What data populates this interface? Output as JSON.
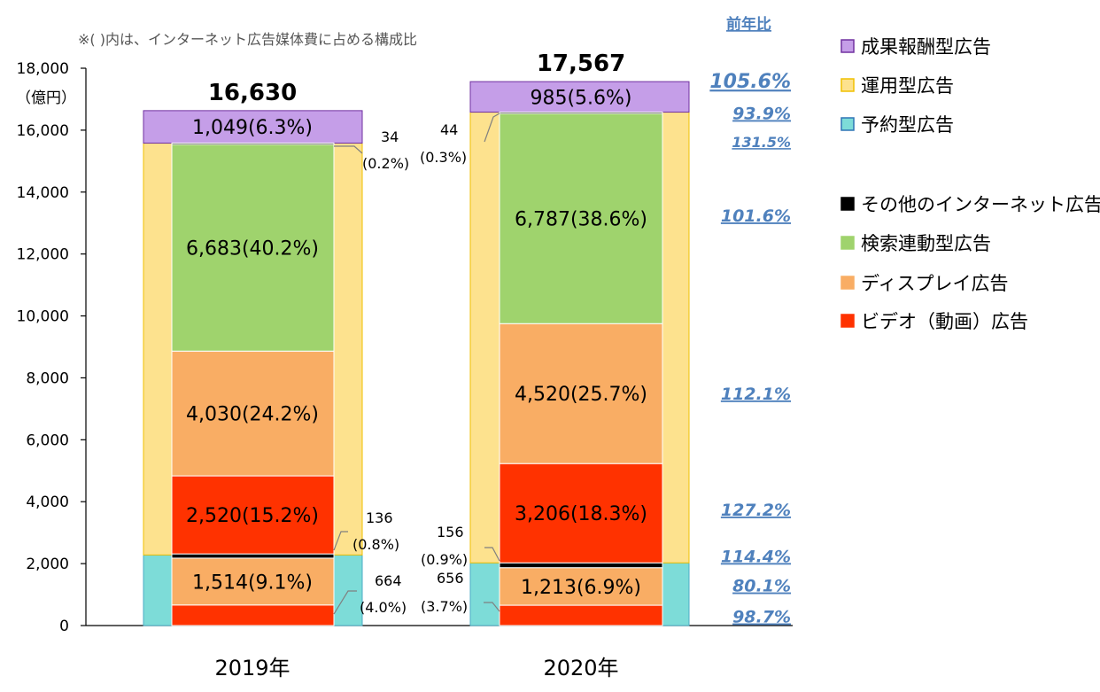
{
  "chart_data": {
    "type": "bar",
    "stacked": true,
    "note": "※( )内は、インターネット広告媒体費に占める構成比",
    "yaxis_unit": "（億円）",
    "ylim": [
      0,
      18000
    ],
    "yticks": [
      "0",
      "2,000",
      "4,000",
      "6,000",
      "8,000",
      "10,000",
      "12,000",
      "14,000",
      "16,000",
      "18,000"
    ],
    "categories": [
      "2019年",
      "2020年"
    ],
    "totals": [
      "16,630",
      "17,567"
    ],
    "colors": {
      "seika": "#c59ee8",
      "unyo": "#fde28e",
      "yoyaku": "#7ddcd8",
      "other": "#000000",
      "search": "#9fd36d",
      "display": "#f9ad64",
      "video": "#ff3200"
    },
    "bars": [
      {
        "yoyaku": 2280,
        "unyo": 13301,
        "seika": 1049,
        "inner": {
          "video": 664,
          "display": 1514,
          "other": 136,
          "video_unyo": 2520,
          "display_unyo": 4030,
          "search": 6683,
          "other_top": 34
        }
      },
      {
        "yoyaku": 2025,
        "unyo": 14557,
        "seika": 985,
        "inner": {
          "video": 656,
          "display": 1213,
          "other": 156,
          "video_unyo": 3206,
          "display_unyo": 4520,
          "search": 6787,
          "other_top": 44
        }
      }
    ],
    "segment_labels": [
      [
        "1,049(6.3%)",
        "6,683(40.2%)",
        "4,030(24.2%)",
        "2,520(15.2%)",
        "1,514(9.1%)"
      ],
      [
        "985(5.6%)",
        "6,787(38.6%)",
        "4,520(25.7%)",
        "3,206(18.3%)",
        "1,213(6.9%)"
      ]
    ],
    "callouts": [
      [
        [
          "34",
          "(0.2%)"
        ],
        [
          "136",
          "(0.8%)"
        ],
        [
          "664",
          "(4.0%)"
        ]
      ],
      [
        [
          "44",
          "(0.3%)"
        ],
        [
          "156",
          "(0.9%)"
        ],
        [
          "656",
          "(3.7%)"
        ]
      ]
    ],
    "yoy_header": "前年比",
    "yoy": [
      {
        "label": "105.6%",
        "value": 17567
      },
      {
        "label": "93.9%",
        "value": 16555
      },
      {
        "label": "131.5%",
        "value": 15650
      },
      {
        "label": "101.6%",
        "value": 13250
      },
      {
        "label": "112.1%",
        "value": 7500
      },
      {
        "label": "127.2%",
        "value": 3750
      },
      {
        "label": "114.4%",
        "value": 2250
      },
      {
        "label": "80.1%",
        "value": 1300
      },
      {
        "label": "98.7%",
        "value": 300
      }
    ],
    "legend": [
      {
        "name": "成果報酬型広告",
        "color": "#c59ee8",
        "border": "#7030a0"
      },
      {
        "name": "運用型広告",
        "color": "#fde28e",
        "border": "#f0c000"
      },
      {
        "name": "予約型広告",
        "color": "#7ddcd8",
        "border": "#2e75b6"
      },
      {
        "name": "その他のインターネット広告",
        "color": "#000000",
        "border": "#000000"
      },
      {
        "name": "検索連動型広告",
        "color": "#9fd36d",
        "border": "#9fd36d"
      },
      {
        "name": "ディスプレイ広告",
        "color": "#f9ad64",
        "border": "#f9ad64"
      },
      {
        "name": "ビデオ（動画）広告",
        "color": "#ff3200",
        "border": "#ff3200"
      }
    ]
  }
}
